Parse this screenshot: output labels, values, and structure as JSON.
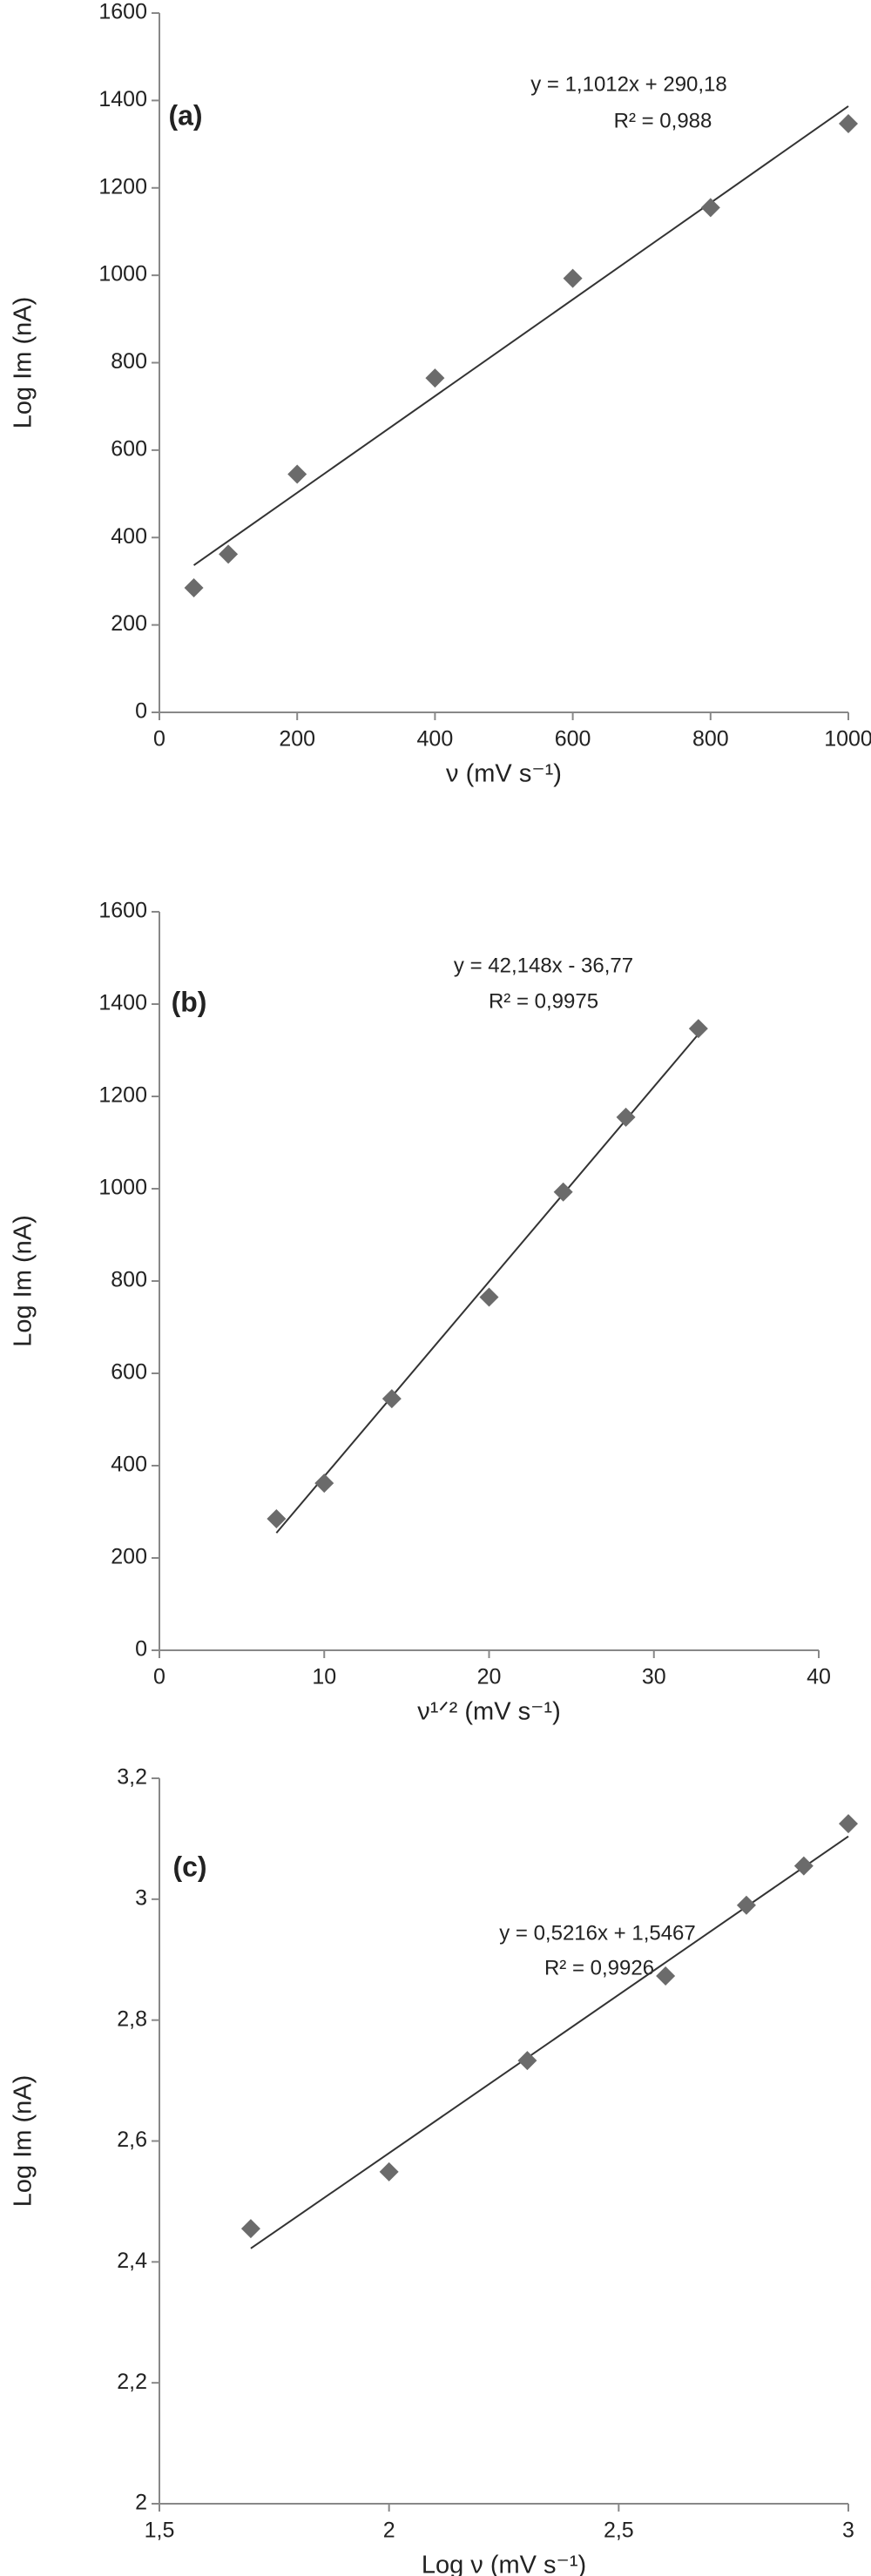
{
  "chart_data": [
    {
      "type": "scatter",
      "panel_label": "(a)",
      "equation": "y = 1,1012x + 290,18",
      "r_squared": "R² = 0,988",
      "x_label": "ν (mV s⁻¹)",
      "y_label": "Log Im (nA)",
      "color": "#6b6b6b",
      "trendline": true,
      "x": [
        50,
        100,
        200,
        400,
        600,
        800,
        1000
      ],
      "values": [
        285,
        362,
        545,
        765,
        993,
        1155,
        1347
      ],
      "xlim": [
        0,
        1000
      ],
      "xticks": [
        0,
        200,
        400,
        600,
        800,
        1000
      ],
      "ylim": [
        0,
        1600
      ],
      "yticks": [
        0,
        200,
        400,
        600,
        800,
        1000,
        1200,
        1400,
        1600
      ]
    },
    {
      "type": "scatter",
      "panel_label": "(b)",
      "equation": "y = 42,148x - 36,77",
      "r_squared": "R² = 0,9975",
      "x_label": "ν¹ᐟ² (mV s⁻¹)",
      "y_label": "Log Im (nA)",
      "color": "#6b6b6b",
      "trendline": true,
      "x": [
        7.1,
        10,
        14.1,
        20,
        24.5,
        28.3,
        32.7
      ],
      "values": [
        285,
        362,
        545,
        765,
        993,
        1155,
        1347
      ],
      "xlim": [
        0,
        40
      ],
      "xticks": [
        0,
        10,
        20,
        30,
        40
      ],
      "ylim": [
        0,
        1600
      ],
      "yticks": [
        0,
        200,
        400,
        600,
        800,
        1000,
        1200,
        1400,
        1600
      ]
    },
    {
      "type": "scatter",
      "panel_label": "(c)",
      "equation": "y = 0,5216x + 1,5467",
      "r_squared": "R² = 0,9926",
      "x_label": "Log ν (mV s⁻¹)",
      "y_label": "Log Im (nA)",
      "color": "#6b6b6b",
      "trendline": true,
      "x": [
        1.699,
        2,
        2.301,
        2.602,
        2.778,
        2.903,
        3.0
      ],
      "values": [
        2.455,
        2.549,
        2.733,
        2.873,
        2.99,
        3.055,
        3.125
      ],
      "xlim": [
        1.5,
        3
      ],
      "xticks": [
        {
          "value": 1.5,
          "label": "1,5"
        },
        2,
        {
          "value": 2.5,
          "label": "2,5"
        },
        3
      ],
      "ylim": [
        2,
        3.2
      ],
      "yticks": [
        2,
        {
          "value": 2.2,
          "label": "2,2"
        },
        {
          "value": 2.4,
          "label": "2,4"
        },
        {
          "value": 2.6,
          "label": "2,6"
        },
        {
          "value": 2.8,
          "label": "2,8"
        },
        3,
        {
          "value": 3.2,
          "label": "3,2"
        }
      ]
    }
  ]
}
